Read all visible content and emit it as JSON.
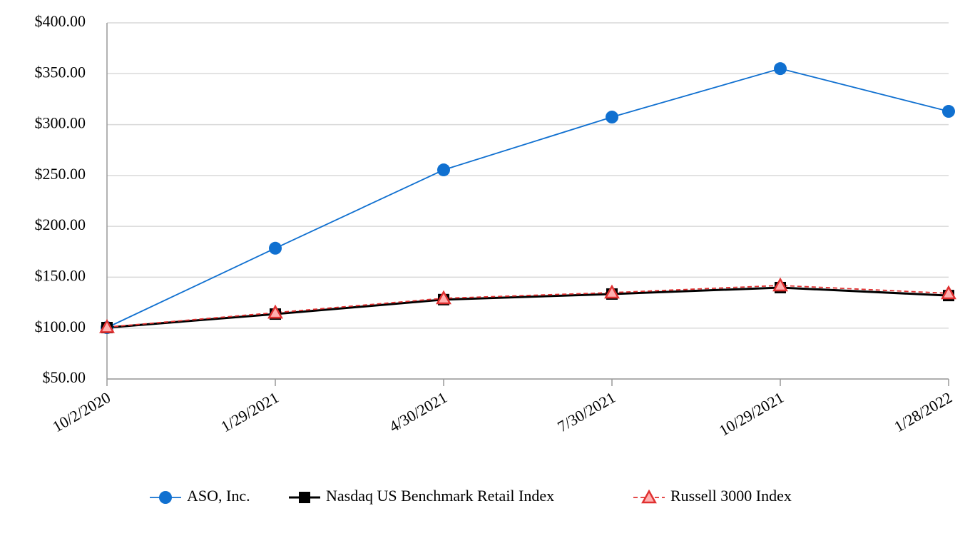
{
  "chart_data": {
    "type": "line",
    "categories": [
      "10/2/2020",
      "1/29/2021",
      "4/30/2021",
      "7/30/2021",
      "10/29/2021",
      "1/28/2022"
    ],
    "series": [
      {
        "name": "ASO, Inc.",
        "color": "#1070d0",
        "marker": "circle",
        "dash": "solid",
        "values": [
          100.5,
          178.5,
          255.5,
          307.4,
          355,
          313
        ]
      },
      {
        "name": "Nasdaq US Benchmark Retail Index",
        "color": "#000000",
        "marker": "square",
        "dash": "solid",
        "values": [
          100.5,
          113.8,
          128,
          133.5,
          139.8,
          132
        ]
      },
      {
        "name": "Russell 3000 Index",
        "color": "#e03030",
        "marker": "triangle",
        "dash": "dashed",
        "values": [
          101,
          115.2,
          129.3,
          134.9,
          141.9,
          134.2
        ]
      }
    ],
    "ylim": [
      50,
      400
    ],
    "yticks": [
      {
        "value": 50,
        "label": "$50.00"
      },
      {
        "value": 100,
        "label": "$100.00"
      },
      {
        "value": 150,
        "label": "$150.00"
      },
      {
        "value": 200,
        "label": "$200.00"
      },
      {
        "value": 250,
        "label": "$250.00"
      },
      {
        "value": 300,
        "label": "$300.00"
      },
      {
        "value": 350,
        "label": "$350.00"
      },
      {
        "value": 400,
        "label": "$400.00"
      }
    ],
    "grid": true,
    "legend": "bottom"
  }
}
